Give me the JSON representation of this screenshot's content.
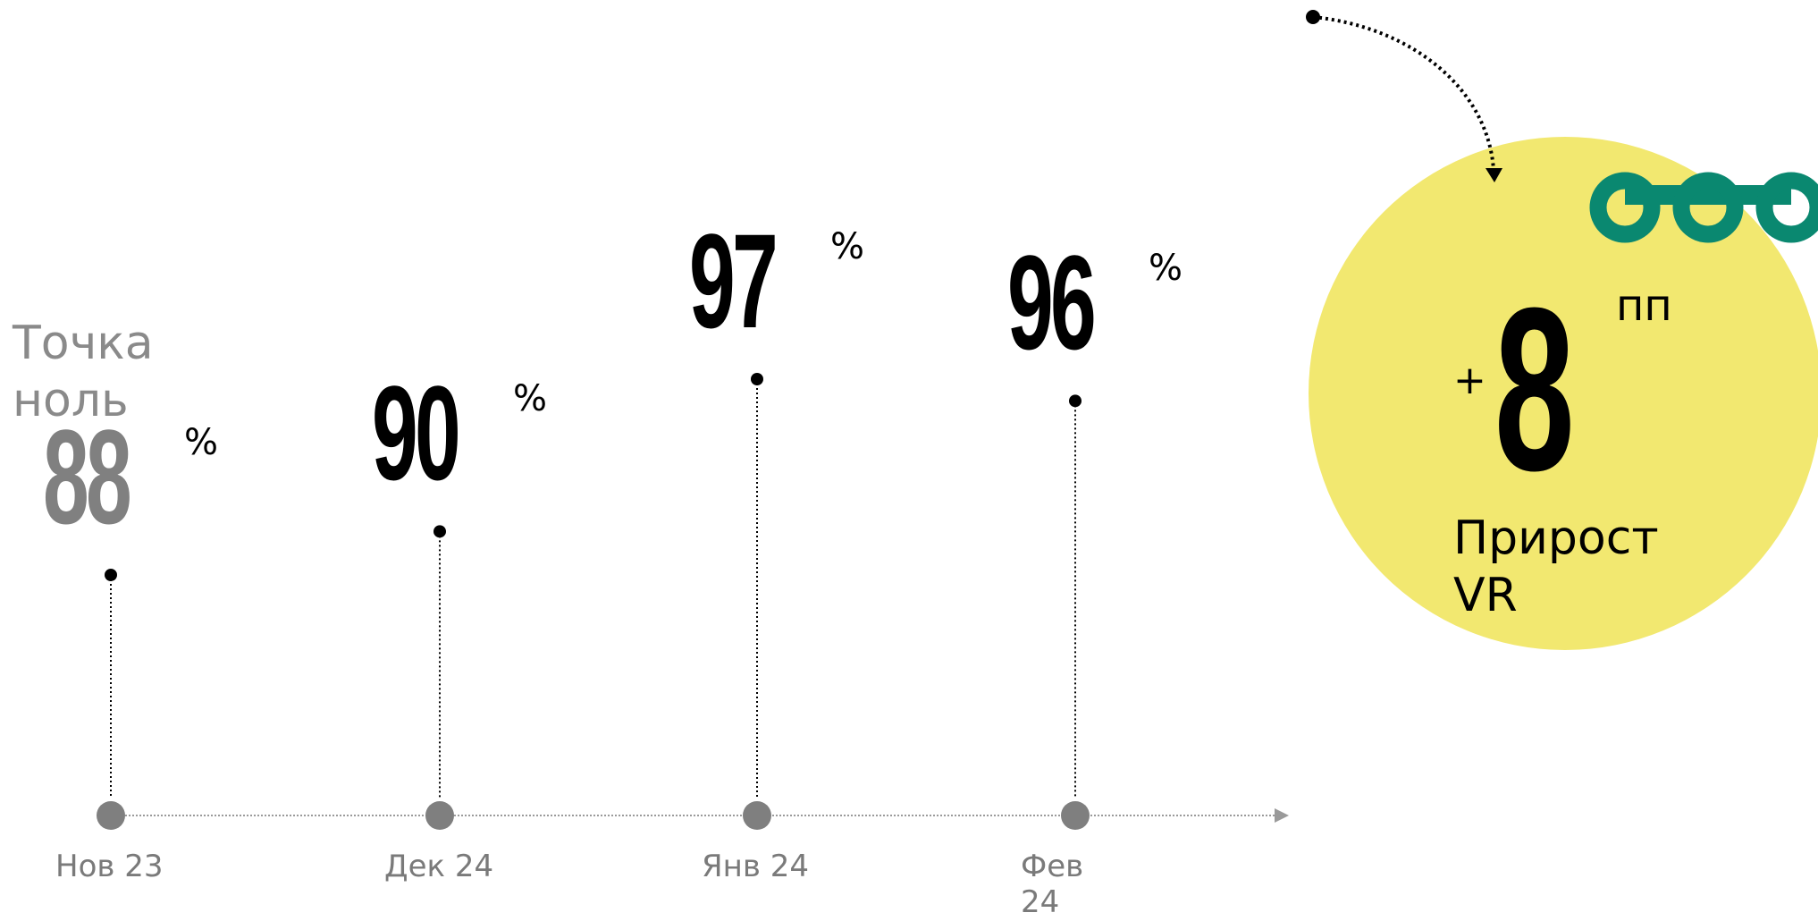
{
  "colors": {
    "background": "#ffffff",
    "text_primary": "#000000",
    "text_muted": "#7a7a7a",
    "baseline_value": "#808080",
    "axis": "#9a9a9a",
    "dot_axis": "#7f7f7f",
    "highlight_circle": "#f2e870",
    "logo": "#0a8870"
  },
  "baseline": {
    "label_line1": "Точка",
    "label_line2": "ноль"
  },
  "chart_data": {
    "type": "line",
    "x": [
      "Нов 23",
      "Дек 24",
      "Янв 24",
      "Фев 24"
    ],
    "series": [
      {
        "values": [
          88,
          90,
          97,
          96
        ]
      }
    ],
    "value_labels": [
      "88",
      "90",
      "97",
      "96"
    ],
    "unit": "%",
    "x_tick_labels": [
      "Нов 23",
      "Дек 24",
      "Янв 24",
      "Фев\n24"
    ],
    "ylim": [
      88,
      97
    ],
    "grid": false,
    "legend": "none"
  },
  "highlight": {
    "prefix": "+",
    "value": "8",
    "unit": "пп",
    "label_line1": "Прирост",
    "label_line2": "VR"
  },
  "icons": {
    "arrow": "dotted-curved-arrow-icon",
    "logo": "chain-rings-logo-icon"
  }
}
